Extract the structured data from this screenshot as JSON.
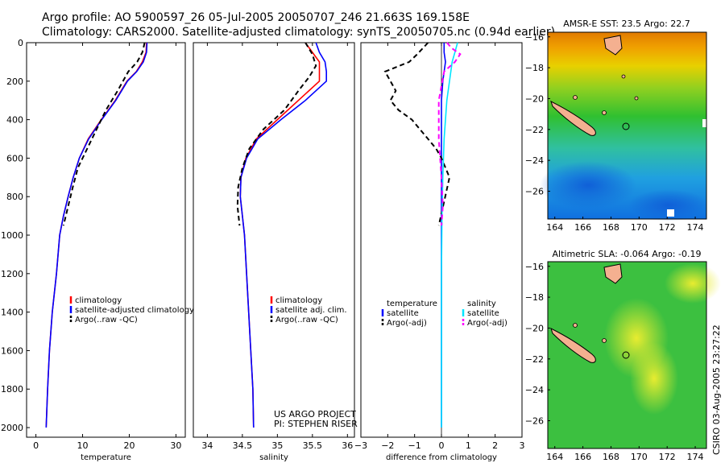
{
  "header": {
    "line1": "Argo profile: AO 5900597_26 05-Jul-2005 20050707_246 21.663S 169.158E",
    "line2": "Climatology: CARS2000. Satellite-adjusted climatology: synTS_20050705.nc (0.94d earlier)"
  },
  "colors": {
    "climatology": "#ff0000",
    "satellite": "#0000ff",
    "argo": "#000000",
    "sat_salinity": "#00e5ff",
    "argo_salinity": "#ff00ff"
  },
  "footer": {
    "project": "US ARGO PROJECT",
    "pi": "PI: STEPHEN RISER",
    "credit": "CSIRO 03-Aug-2005 23:27:22"
  },
  "chart_data": [
    {
      "type": "line",
      "id": "temperature",
      "xlabel": "temperature",
      "ylabel": "",
      "xlim": [
        -2,
        32
      ],
      "ylim": [
        2050,
        0
      ],
      "y_inverted": true,
      "xticks": [
        0,
        10,
        20,
        30
      ],
      "yticks": [
        0,
        200,
        400,
        600,
        800,
        1000,
        1200,
        1400,
        1600,
        1800,
        2000
      ],
      "legend": [
        "climatology",
        "satellite-adjusted climatology",
        "Argo(..raw -QC)"
      ],
      "series": [
        {
          "name": "climatology",
          "color": "#ff0000",
          "x": [
            23.7,
            23.6,
            22.8,
            21.5,
            19.5,
            17.0,
            14.0,
            11.2,
            9.3,
            8.0,
            6.9,
            5.9,
            5.1,
            4.4,
            3.5,
            2.9,
            2.5,
            2.2
          ],
          "y": [
            0,
            50,
            100,
            150,
            200,
            300,
            400,
            500,
            600,
            700,
            800,
            900,
            1000,
            1200,
            1400,
            1600,
            1800,
            2000
          ]
        },
        {
          "name": "satellite-adjusted climatology",
          "color": "#0000ff",
          "x": [
            23.8,
            23.7,
            23.0,
            21.6,
            19.6,
            17.1,
            14.1,
            11.3,
            9.3,
            8.0,
            6.9,
            5.9,
            5.1,
            4.4,
            3.5,
            2.9,
            2.5,
            2.2
          ],
          "y": [
            0,
            50,
            100,
            150,
            200,
            300,
            400,
            500,
            600,
            700,
            800,
            900,
            1000,
            1200,
            1400,
            1600,
            1800,
            2000
          ]
        },
        {
          "name": "Argo(..raw -QC)",
          "color": "#000000",
          "dashed": true,
          "x": [
            23.3,
            22.8,
            21.7,
            19.8,
            17.5,
            15.0,
            13.0,
            11.0,
            9.0,
            7.9,
            6.9,
            5.9
          ],
          "y": [
            0,
            50,
            100,
            150,
            250,
            350,
            450,
            550,
            650,
            750,
            850,
            950
          ]
        }
      ]
    },
    {
      "type": "line",
      "id": "salinity",
      "xlabel": "salinity",
      "ylabel": "",
      "xlim": [
        33.8,
        36.1
      ],
      "ylim": [
        2050,
        0
      ],
      "y_inverted": true,
      "xticks": [
        34,
        34.5,
        35,
        35.5,
        36
      ],
      "yticks": [],
      "legend": [
        "climatology",
        "satellite adj. clim.",
        "Argo(..raw -QC)"
      ],
      "series": [
        {
          "name": "climatology",
          "color": "#ff0000",
          "x": [
            35.4,
            35.5,
            35.6,
            35.6,
            35.6,
            35.3,
            35.0,
            34.7,
            34.55,
            34.48,
            34.47,
            34.5,
            34.53,
            34.56,
            34.59,
            34.62,
            34.65,
            34.66
          ],
          "y": [
            0,
            50,
            100,
            150,
            200,
            300,
            400,
            500,
            600,
            700,
            800,
            900,
            1000,
            1200,
            1400,
            1600,
            1800,
            2000
          ]
        },
        {
          "name": "satellite adj. clim.",
          "color": "#0000ff",
          "x": [
            35.55,
            35.6,
            35.68,
            35.7,
            35.7,
            35.4,
            35.05,
            34.72,
            34.56,
            34.48,
            34.47,
            34.5,
            34.53,
            34.56,
            34.59,
            34.62,
            34.65,
            34.66
          ],
          "y": [
            0,
            50,
            100,
            150,
            200,
            300,
            400,
            500,
            600,
            700,
            800,
            900,
            1000,
            1200,
            1400,
            1600,
            1800,
            2000
          ]
        },
        {
          "name": "Argo(..raw -QC)",
          "color": "#000000",
          "dashed": true,
          "x": [
            35.4,
            35.5,
            35.55,
            35.45,
            35.3,
            35.1,
            34.8,
            34.6,
            34.5,
            34.44,
            34.43,
            34.46
          ],
          "y": [
            0,
            60,
            120,
            180,
            250,
            350,
            450,
            550,
            650,
            750,
            850,
            950
          ]
        }
      ]
    },
    {
      "type": "line",
      "id": "difference",
      "xlabel": "difference from climatology",
      "ylabel": "",
      "xlim": [
        -3,
        3
      ],
      "ylim": [
        2050,
        0
      ],
      "y_inverted": true,
      "xticks": [
        -3,
        -2,
        -1,
        0,
        1,
        2,
        3
      ],
      "yticks": [],
      "legend_left": [
        "temperature",
        "satellite",
        "Argo(-adj)"
      ],
      "legend_right": [
        "salinity",
        "satellite",
        "Argo(-adj)"
      ],
      "series": [
        {
          "name": "temperature satellite",
          "color": "#0000ff",
          "x": [
            0.1,
            0.1,
            0.15,
            0.05,
            0.0,
            0.0,
            0.0,
            0.0,
            0.0,
            0.0,
            0.0,
            0.0
          ],
          "y": [
            0,
            50,
            100,
            200,
            300,
            500,
            700,
            900,
            1200,
            1500,
            1800,
            2000
          ]
        },
        {
          "name": "temperature Argo(-adj)",
          "color": "#000000",
          "dashed": true,
          "x": [
            -0.5,
            -0.9,
            -1.2,
            -2.1,
            -1.9,
            -1.7,
            -1.9,
            -1.6,
            -1.1,
            -0.8,
            -0.5,
            -0.2,
            0.0,
            0.3,
            -0.1
          ],
          "y": [
            0,
            60,
            100,
            150,
            200,
            250,
            300,
            350,
            400,
            450,
            500,
            550,
            600,
            700,
            950
          ]
        },
        {
          "name": "salinity satellite",
          "color": "#00e5ff",
          "x": [
            0.6,
            0.5,
            0.4,
            0.3,
            0.2,
            0.1,
            0.05,
            0.02,
            0.0,
            0.0,
            0.0,
            0.0
          ],
          "y": [
            0,
            50,
            100,
            200,
            300,
            500,
            700,
            900,
            1200,
            1500,
            1800,
            2000
          ]
        },
        {
          "name": "salinity Argo(-adj)",
          "color": "#ff00ff",
          "dashed": true,
          "x": [
            0.2,
            0.4,
            0.7,
            0.5,
            0.1,
            -0.1,
            -0.1,
            0.0,
            0.05,
            0.0
          ],
          "y": [
            0,
            30,
            60,
            100,
            150,
            300,
            500,
            700,
            850,
            950
          ]
        }
      ]
    },
    {
      "type": "heatmap",
      "id": "sst_map",
      "title": "AMSR-E SST: 23.5 Argo: 22.7",
      "xticks": [
        164,
        166,
        168,
        170,
        172,
        174
      ],
      "yticks": [
        -16,
        -18,
        -20,
        -22,
        -24,
        -26
      ],
      "xlim": [
        163.5,
        174.8
      ],
      "ylim": [
        -27.8,
        -15.7
      ]
    },
    {
      "type": "heatmap",
      "id": "sla_map",
      "title": "Altimetric SLA: -0.064 Argo: -0.19",
      "xticks": [
        164,
        166,
        168,
        170,
        172,
        174
      ],
      "yticks": [
        -16,
        -18,
        -20,
        -22,
        -24,
        -26
      ],
      "xlim": [
        163.5,
        174.8
      ],
      "ylim": [
        -27.8,
        -15.7
      ]
    }
  ]
}
